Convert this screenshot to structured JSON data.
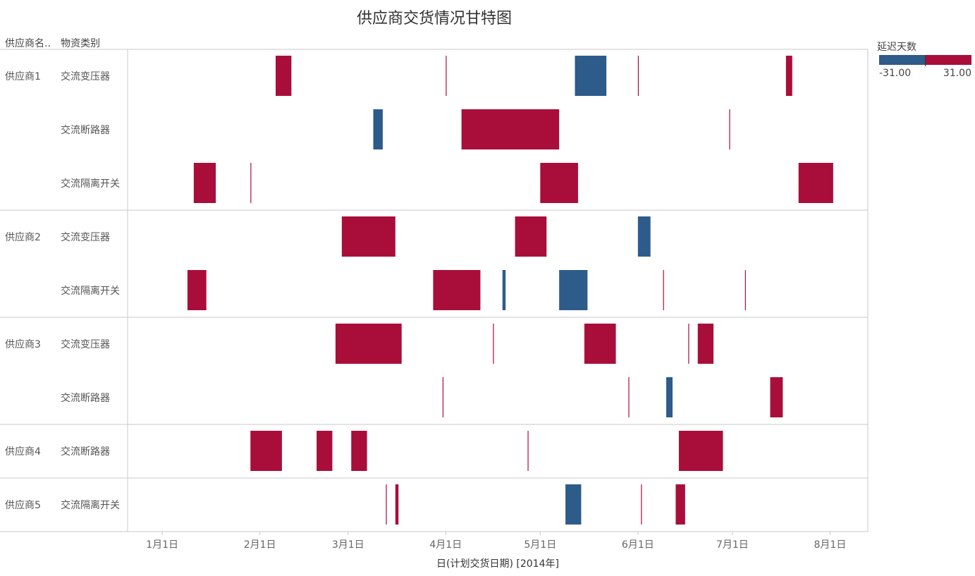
{
  "title": "供应商交货情况甘特图",
  "headers": {
    "supplier": "供应商名..",
    "material": "物资类别"
  },
  "legend": {
    "title": "延迟天数",
    "min_label": "-31.00",
    "max_label": "31.00",
    "negative_color": "#2d5b8a",
    "positive_color": "#a90e3a"
  },
  "chart_data": {
    "type": "gantt",
    "xlabel": "日(计划交货日期) [2014年]",
    "x_ticks": [
      "1月1日",
      "2月1日",
      "3月1日",
      "4月1日",
      "5月1日",
      "6月1日",
      "7月1日",
      "8月1日"
    ],
    "x_range": [
      "2013-12-21",
      "2014-08-13"
    ],
    "rows": [
      {
        "supplier": "供应商1",
        "material": "交流变压器",
        "tasks": [
          {
            "start": "2014-02-06",
            "delay": 5
          },
          {
            "start": "2014-04-01",
            "delay": 0
          },
          {
            "start": "2014-05-12",
            "delay": -10
          },
          {
            "start": "2014-06-01",
            "delay": 0
          },
          {
            "start": "2014-07-18",
            "delay": 2
          }
        ]
      },
      {
        "supplier": "",
        "material": "交流断路器",
        "tasks": [
          {
            "start": "2014-03-09",
            "delay": -3
          },
          {
            "start": "2014-04-06",
            "delay": 31
          },
          {
            "start": "2014-06-30",
            "delay": 0
          }
        ]
      },
      {
        "supplier": "",
        "material": "交流隔离开关",
        "tasks": [
          {
            "start": "2014-01-11",
            "delay": 7
          },
          {
            "start": "2014-01-29",
            "delay": 0
          },
          {
            "start": "2014-05-01",
            "delay": 12
          },
          {
            "start": "2014-07-22",
            "delay": 11
          }
        ]
      },
      {
        "supplier": "供应商2",
        "material": "交流变压器",
        "tasks": [
          {
            "start": "2014-02-27",
            "delay": 17
          },
          {
            "start": "2014-04-23",
            "delay": 10
          },
          {
            "start": "2014-06-01",
            "delay": -4
          }
        ]
      },
      {
        "supplier": "",
        "material": "交流隔离开关",
        "tasks": [
          {
            "start": "2014-01-09",
            "delay": 6
          },
          {
            "start": "2014-03-28",
            "delay": 15
          },
          {
            "start": "2014-04-19",
            "delay": -1
          },
          {
            "start": "2014-05-07",
            "delay": -9
          },
          {
            "start": "2014-06-09",
            "delay": 0
          },
          {
            "start": "2014-07-05",
            "delay": 0
          }
        ]
      },
      {
        "supplier": "供应商3",
        "material": "交流变压器",
        "tasks": [
          {
            "start": "2014-02-25",
            "delay": 21
          },
          {
            "start": "2014-04-16",
            "delay": 0
          },
          {
            "start": "2014-05-15",
            "delay": 10
          },
          {
            "start": "2014-06-17",
            "delay": 0
          },
          {
            "start": "2014-06-20",
            "delay": 5
          }
        ]
      },
      {
        "supplier": "",
        "material": "交流断路器",
        "tasks": [
          {
            "start": "2014-03-31",
            "delay": 0
          },
          {
            "start": "2014-05-29",
            "delay": 0
          },
          {
            "start": "2014-06-10",
            "delay": -2
          },
          {
            "start": "2014-07-13",
            "delay": 4
          }
        ]
      },
      {
        "supplier": "供应商4",
        "material": "交流断路器",
        "tasks": [
          {
            "start": "2014-01-29",
            "delay": 10
          },
          {
            "start": "2014-02-19",
            "delay": 5
          },
          {
            "start": "2014-03-02",
            "delay": 5
          },
          {
            "start": "2014-04-27",
            "delay": 0
          },
          {
            "start": "2014-06-14",
            "delay": 14
          }
        ]
      },
      {
        "supplier": "供应商5",
        "material": "交流隔离开关",
        "tasks": [
          {
            "start": "2014-03-16",
            "delay": 1
          },
          {
            "start": "2014-03-13",
            "delay": 0
          },
          {
            "start": "2014-05-09",
            "delay": -5
          },
          {
            "start": "2014-06-02",
            "delay": 0
          },
          {
            "start": "2014-06-13",
            "delay": 3
          }
        ]
      }
    ]
  }
}
